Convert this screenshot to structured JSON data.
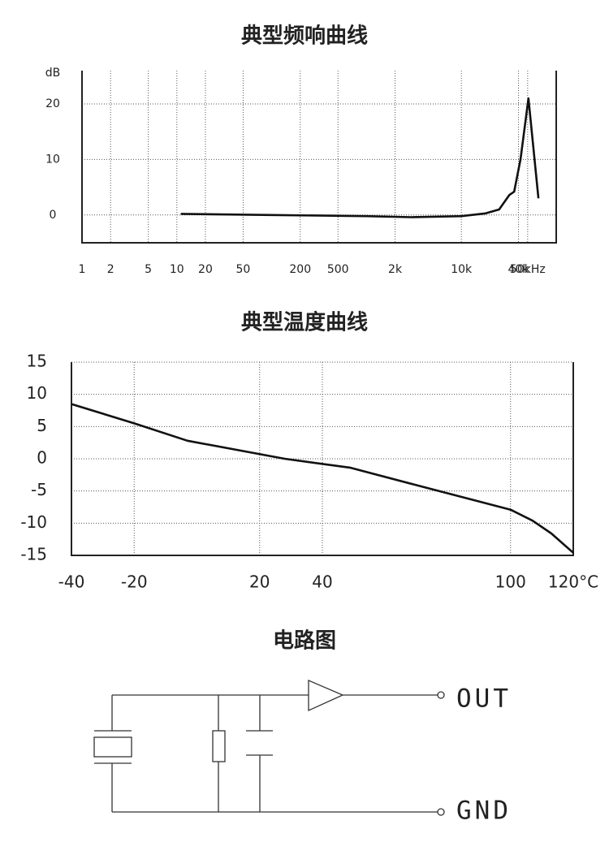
{
  "chart_data": [
    {
      "type": "line",
      "title": "典型频响曲线",
      "y_label": "dB",
      "x_log": true,
      "x": [
        11,
        100,
        1000,
        3000,
        10000,
        18000,
        25000,
        32000,
        36000,
        42000,
        51000,
        65000
      ],
      "values": [
        0.2,
        0,
        -0.2,
        -0.4,
        -0.2,
        0.3,
        1,
        3.6,
        4.2,
        10,
        21,
        3
      ],
      "color": "#111111",
      "xlim": [
        1,
        100000
      ],
      "xticks": [
        1,
        2,
        5,
        10,
        20,
        50,
        200,
        500,
        {
          "value": 2000,
          "label": "2k"
        },
        {
          "value": 10000,
          "label": "10k"
        },
        {
          "value": 40000,
          "label": "40k"
        },
        {
          "value": 50000,
          "label": "50kHz"
        }
      ],
      "ylim": [
        -5,
        26
      ],
      "yticks": [
        0,
        10,
        20
      ],
      "grid": true
    },
    {
      "type": "line",
      "title": "典型温度曲线",
      "x_log": false,
      "x": [
        -40,
        -20,
        -3,
        28,
        49,
        70,
        100,
        107,
        113,
        120
      ],
      "values": [
        8.5,
        5.5,
        2.8,
        0,
        -1.4,
        -4.1,
        -7.9,
        -9.6,
        -11.6,
        -14.6
      ],
      "color": "#111111",
      "xlim": [
        -40,
        120
      ],
      "xticks": [
        -40,
        -20,
        20,
        40,
        100,
        {
          "value": 120,
          "label": "120°C"
        }
      ],
      "ylim": [
        -15,
        15
      ],
      "yticks": [
        -15,
        -10,
        -5,
        0,
        5,
        10,
        15
      ],
      "grid": true
    }
  ],
  "circuit": {
    "title": "电路图",
    "labels": [
      "OUT",
      "GND"
    ]
  }
}
